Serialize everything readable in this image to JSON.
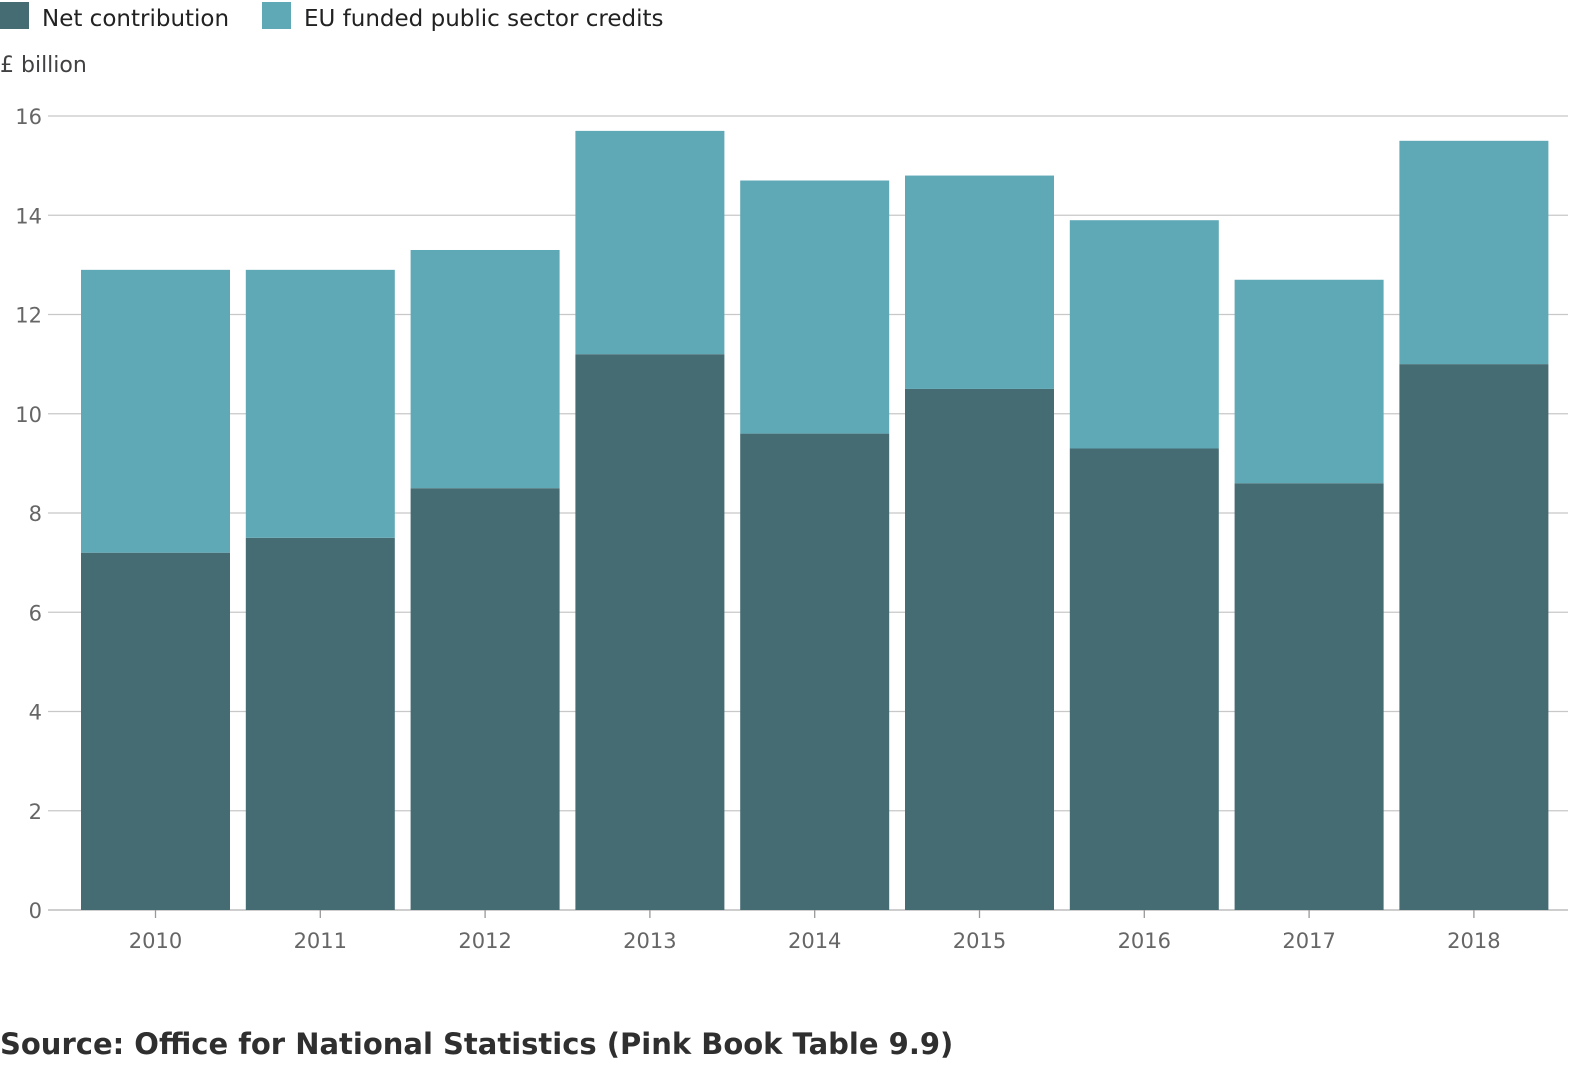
{
  "chart_data": {
    "type": "bar",
    "stacked": true,
    "categories": [
      "2010",
      "2011",
      "2012",
      "2013",
      "2014",
      "2015",
      "2016",
      "2017",
      "2018"
    ],
    "series": [
      {
        "name": "Net contribution",
        "color": "#466c73",
        "values": [
          7.2,
          7.5,
          8.5,
          11.2,
          9.6,
          10.5,
          9.3,
          8.6,
          11.0
        ]
      },
      {
        "name": "EU funded public sector credits",
        "color": "#5fa8b6",
        "values": [
          5.7,
          5.4,
          4.8,
          4.5,
          5.1,
          4.3,
          4.6,
          4.1,
          4.5
        ]
      }
    ],
    "ylabel": "£ billion",
    "ylim": [
      0,
      16
    ],
    "yticks": [
      0,
      2,
      4,
      6,
      8,
      10,
      12,
      14,
      16
    ],
    "grid": true,
    "legend_position": "top-left"
  },
  "source": "Source: Office for National Statistics (Pink Book Table 9.9)"
}
